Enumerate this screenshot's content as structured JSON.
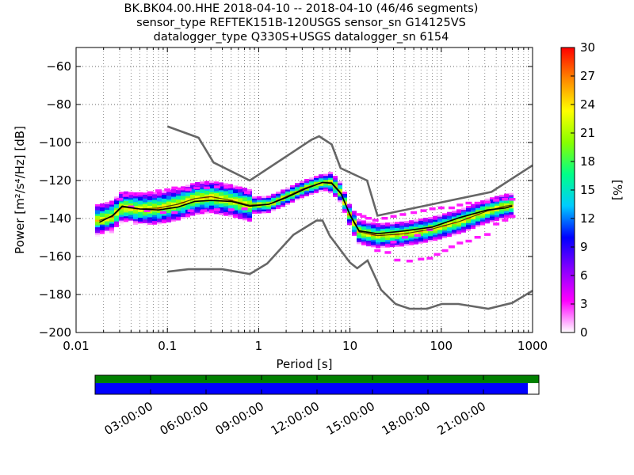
{
  "title": {
    "line1": "BK.BK04.00.HHE   2018-04-10 -- 2018-04-10  (46/46 segments)",
    "line2": "sensor_type REFTEK151B-120USGS sensor_sn G14125VS",
    "line3": "datalogger_type Q330S+USGS datalogger_sn 6154"
  },
  "chart_data": {
    "type": "heatmap",
    "xlabel": "Period [s]",
    "ylabel": "Power [m²/s⁴/Hz] [dB]",
    "xscale": "log",
    "xlim": [
      0.01,
      1000
    ],
    "ylim": [
      -200,
      -50
    ],
    "x_ticks": [
      {
        "value": 0.01,
        "label": "0.01"
      },
      {
        "value": 0.1,
        "label": "0.1"
      },
      {
        "value": 1,
        "label": "1"
      },
      {
        "value": 10,
        "label": "10"
      },
      {
        "value": 100,
        "label": "100"
      },
      {
        "value": 1000,
        "label": "1000"
      }
    ],
    "y_ticks": [
      {
        "value": -60,
        "label": "−60"
      },
      {
        "value": -80,
        "label": "−80"
      },
      {
        "value": -100,
        "label": "−100"
      },
      {
        "value": -120,
        "label": "−120"
      },
      {
        "value": -140,
        "label": "−140"
      },
      {
        "value": -160,
        "label": "−160"
      },
      {
        "value": -180,
        "label": "−180"
      },
      {
        "value": -200,
        "label": "−200"
      }
    ],
    "colorbar": {
      "label": "[%]",
      "range": [
        0,
        30
      ],
      "ticks": [
        {
          "value": 0,
          "label": "0"
        },
        {
          "value": 3,
          "label": "3"
        },
        {
          "value": 6,
          "label": "6"
        },
        {
          "value": 9,
          "label": "9"
        },
        {
          "value": 12,
          "label": "12"
        },
        {
          "value": 15,
          "label": "15"
        },
        {
          "value": 18,
          "label": "18"
        },
        {
          "value": 21,
          "label": "21"
        },
        {
          "value": 24,
          "label": "24"
        },
        {
          "value": 27,
          "label": "27"
        },
        {
          "value": 30,
          "label": "30"
        }
      ],
      "stops": [
        "#ffffff",
        "#ff00ff",
        "#8800ff",
        "#0000ff",
        "#00ccff",
        "#00ff88",
        "#88ff00",
        "#ffff00",
        "#ff8800",
        "#ff0000"
      ]
    },
    "noise_model_high": [
      [
        0.1,
        -91.5
      ],
      [
        0.22,
        -97.5
      ],
      [
        0.32,
        -110.5
      ],
      [
        0.8,
        -120
      ],
      [
        3.8,
        -98.5
      ],
      [
        4.6,
        -96.7
      ],
      [
        6.3,
        -101
      ],
      [
        7.9,
        -113.5
      ],
      [
        15.4,
        -120
      ],
      [
        20,
        -138.5
      ],
      [
        354.8,
        -126
      ],
      [
        1000,
        -112
      ]
    ],
    "noise_model_low": [
      [
        0.1,
        -168
      ],
      [
        0.17,
        -166.7
      ],
      [
        0.4,
        -166.7
      ],
      [
        0.8,
        -169.2
      ],
      [
        1.24,
        -163.7
      ],
      [
        2.4,
        -148.6
      ],
      [
        4.3,
        -141.1
      ],
      [
        5,
        -141.1
      ],
      [
        6,
        -149
      ],
      [
        10,
        -163.2
      ],
      [
        12,
        -166.2
      ],
      [
        15.6,
        -162.1
      ],
      [
        21.9,
        -177.5
      ],
      [
        31.6,
        -185
      ],
      [
        45,
        -187.5
      ],
      [
        70,
        -187.5
      ],
      [
        101,
        -185
      ],
      [
        154,
        -185
      ],
      [
        328,
        -187.5
      ],
      [
        600,
        -184.4
      ],
      [
        1000,
        -178
      ]
    ],
    "median": [
      [
        0.018,
        -142
      ],
      [
        0.025,
        -138.5
      ],
      [
        0.032,
        -133.5
      ],
      [
        0.05,
        -135
      ],
      [
        0.08,
        -135.5
      ],
      [
        0.13,
        -134
      ],
      [
        0.2,
        -131
      ],
      [
        0.3,
        -130.5
      ],
      [
        0.5,
        -131
      ],
      [
        0.8,
        -133.5
      ],
      [
        1.3,
        -132.5
      ],
      [
        2,
        -129
      ],
      [
        3.2,
        -124.5
      ],
      [
        5,
        -121
      ],
      [
        6.3,
        -121.5
      ],
      [
        8,
        -127
      ],
      [
        10,
        -138
      ],
      [
        12.6,
        -146.5
      ],
      [
        20,
        -148
      ],
      [
        40,
        -146.5
      ],
      [
        80,
        -144.5
      ],
      [
        160,
        -139.5
      ],
      [
        320,
        -135.5
      ],
      [
        500,
        -134.5
      ],
      [
        600,
        -133.5
      ]
    ],
    "mode": [
      [
        0.018,
        -141
      ],
      [
        0.025,
        -139
      ],
      [
        0.032,
        -134
      ],
      [
        0.05,
        -135
      ],
      [
        0.08,
        -134.5
      ],
      [
        0.13,
        -132.5
      ],
      [
        0.2,
        -129.5
      ],
      [
        0.3,
        -128.5
      ],
      [
        0.5,
        -130.5
      ],
      [
        0.8,
        -133
      ],
      [
        1.3,
        -132.5
      ],
      [
        2,
        -128.5
      ],
      [
        3.2,
        -124
      ],
      [
        5,
        -121
      ],
      [
        6.3,
        -121
      ],
      [
        8,
        -126.5
      ],
      [
        10,
        -138.5
      ],
      [
        12.6,
        -147
      ],
      [
        20,
        -149
      ],
      [
        40,
        -148
      ],
      [
        80,
        -145.5
      ],
      [
        160,
        -141.5
      ],
      [
        320,
        -136
      ],
      [
        500,
        -133.5
      ],
      [
        600,
        -133
      ]
    ],
    "density_scatter": [
      [
        0.03,
        -130
      ],
      [
        0.035,
        -128
      ],
      [
        0.04,
        -127
      ],
      [
        0.05,
        -127
      ],
      [
        0.065,
        -126.5
      ],
      [
        0.08,
        -125.5
      ],
      [
        0.1,
        -125
      ],
      [
        0.12,
        -124
      ],
      [
        0.14,
        -124.5
      ],
      [
        0.17,
        -125
      ],
      [
        0.21,
        -124
      ],
      [
        0.27,
        -124
      ],
      [
        0.35,
        -123.5
      ],
      [
        0.45,
        -123.5
      ],
      [
        0.6,
        -124
      ],
      [
        0.75,
        -126.5
      ],
      [
        0.04,
        -134
      ],
      [
        0.06,
        -136
      ],
      [
        0.09,
        -137
      ],
      [
        0.12,
        -137
      ],
      [
        0.18,
        -136
      ],
      [
        0.25,
        -136
      ],
      [
        0.35,
        -135.5
      ],
      [
        0.5,
        -135.5
      ],
      [
        0.7,
        -135
      ],
      [
        12.5,
        -138
      ],
      [
        14,
        -139
      ],
      [
        16,
        -140
      ],
      [
        19,
        -141
      ],
      [
        24,
        -140
      ],
      [
        30,
        -139
      ],
      [
        38,
        -138
      ],
      [
        50,
        -137
      ],
      [
        64,
        -136
      ],
      [
        80,
        -135
      ],
      [
        100,
        -134.5
      ],
      [
        130,
        -134.5
      ],
      [
        160,
        -133
      ],
      [
        200,
        -132
      ],
      [
        250,
        -132
      ],
      [
        320,
        -131.5
      ],
      [
        400,
        -130.5
      ],
      [
        500,
        -130
      ],
      [
        600,
        -130
      ],
      [
        20,
        -157
      ],
      [
        26,
        -158
      ],
      [
        33,
        -162
      ],
      [
        45,
        -162.5
      ],
      [
        60,
        -161.5
      ],
      [
        75,
        -161
      ],
      [
        90,
        -159
      ],
      [
        110,
        -157
      ],
      [
        130,
        -155
      ],
      [
        160,
        -153
      ],
      [
        200,
        -152
      ],
      [
        250,
        -150
      ],
      [
        320,
        -148.5
      ],
      [
        400,
        -143
      ],
      [
        500,
        -141
      ],
      [
        600,
        -139
      ],
      [
        30,
        -152.5
      ],
      [
        40,
        -150
      ],
      [
        55,
        -149
      ],
      [
        75,
        -146
      ]
    ]
  },
  "availability": {
    "time_ticks": [
      "03:00:00",
      "06:00:00",
      "09:00:00",
      "12:00:00",
      "15:00:00",
      "18:00:00",
      "21:00:00"
    ],
    "green_fraction": 1.0,
    "blue_fraction": 0.975,
    "colors": {
      "green": "#008000",
      "blue": "#0000ff"
    }
  }
}
